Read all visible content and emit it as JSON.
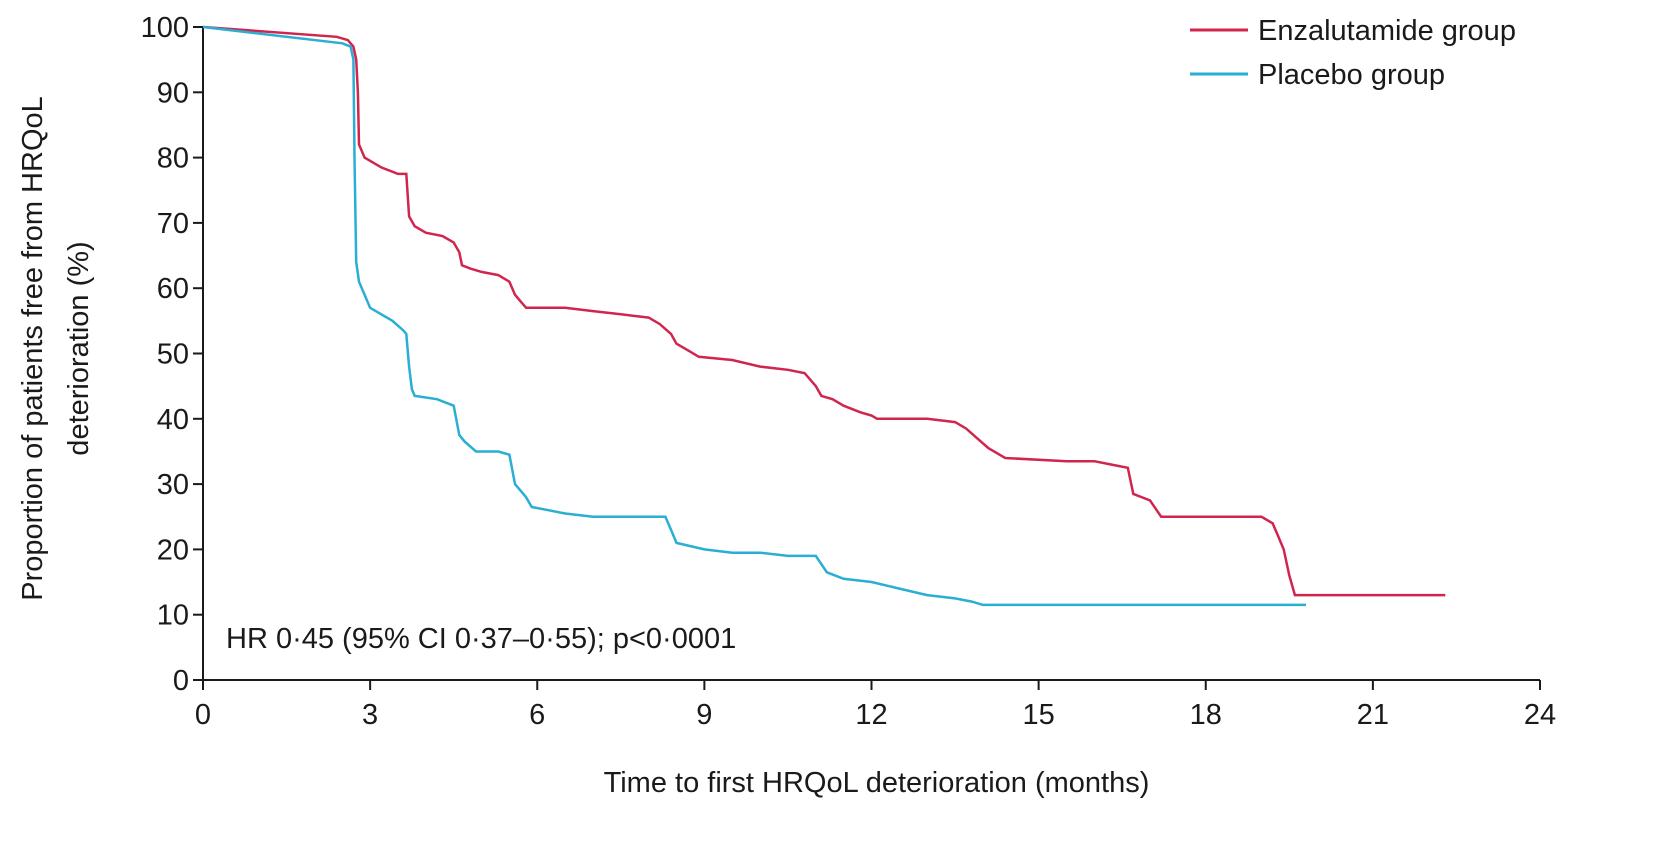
{
  "chart_data": {
    "type": "line",
    "title": "",
    "xlabel": "Time to first HRQoL deterioration (months)",
    "ylabel_line1": "Proportion of patients free from HRQoL",
    "ylabel_line2": "deterioration (%)",
    "xlim": [
      0,
      24
    ],
    "ylim": [
      0,
      100
    ],
    "xticks": [
      0,
      3,
      6,
      9,
      12,
      15,
      18,
      21,
      24
    ],
    "yticks": [
      0,
      10,
      20,
      30,
      40,
      50,
      60,
      70,
      80,
      90,
      100
    ],
    "xtick_labels": [
      "0",
      "3",
      "6",
      "9",
      "12",
      "15",
      "18",
      "21",
      "24"
    ],
    "ytick_labels": [
      "0",
      "10",
      "20",
      "30",
      "40",
      "50",
      "60",
      "70",
      "80",
      "90",
      "100"
    ],
    "grid": false,
    "legend_position": "top-right",
    "annotation": "HR 0·45 (95% CI 0·37–0·55); p<0·0001",
    "series": [
      {
        "name": "Enzalutamide group",
        "color": "#d0264e",
        "points": [
          [
            0,
            100
          ],
          [
            2.4,
            98.5
          ],
          [
            2.6,
            98
          ],
          [
            2.7,
            97
          ],
          [
            2.75,
            95
          ],
          [
            2.78,
            90
          ],
          [
            2.8,
            82
          ],
          [
            2.9,
            80
          ],
          [
            3.2,
            78.5
          ],
          [
            3.5,
            77.5
          ],
          [
            3.65,
            77.5
          ],
          [
            3.7,
            71
          ],
          [
            3.8,
            69.5
          ],
          [
            4.0,
            68.5
          ],
          [
            4.3,
            68
          ],
          [
            4.5,
            67
          ],
          [
            4.6,
            65.5
          ],
          [
            4.65,
            63.5
          ],
          [
            4.8,
            63
          ],
          [
            5.0,
            62.5
          ],
          [
            5.3,
            62
          ],
          [
            5.5,
            61
          ],
          [
            5.6,
            59
          ],
          [
            5.7,
            58
          ],
          [
            5.8,
            57
          ],
          [
            6.0,
            57
          ],
          [
            6.5,
            57
          ],
          [
            7.0,
            56.5
          ],
          [
            7.5,
            56
          ],
          [
            8.0,
            55.5
          ],
          [
            8.2,
            54.5
          ],
          [
            8.4,
            53
          ],
          [
            8.5,
            51.5
          ],
          [
            8.7,
            50.5
          ],
          [
            8.9,
            49.5
          ],
          [
            9.5,
            49
          ],
          [
            10.0,
            48
          ],
          [
            10.5,
            47.5
          ],
          [
            10.8,
            47
          ],
          [
            10.9,
            46
          ],
          [
            11.0,
            45
          ],
          [
            11.1,
            43.5
          ],
          [
            11.3,
            43
          ],
          [
            11.5,
            42
          ],
          [
            11.8,
            41
          ],
          [
            12.0,
            40.5
          ],
          [
            12.1,
            40
          ],
          [
            13.0,
            40
          ],
          [
            13.5,
            39.5
          ],
          [
            13.7,
            38.5
          ],
          [
            13.9,
            37
          ],
          [
            14.1,
            35.5
          ],
          [
            14.3,
            34.5
          ],
          [
            14.4,
            34
          ],
          [
            15.5,
            33.5
          ],
          [
            16.0,
            33.5
          ],
          [
            16.3,
            33
          ],
          [
            16.6,
            32.5
          ],
          [
            16.7,
            28.5
          ],
          [
            17.0,
            27.5
          ],
          [
            17.2,
            25
          ],
          [
            17.5,
            25
          ],
          [
            18.5,
            25
          ],
          [
            19.0,
            25
          ],
          [
            19.2,
            24
          ],
          [
            19.3,
            22
          ],
          [
            19.4,
            20
          ],
          [
            19.5,
            16
          ],
          [
            19.6,
            13
          ],
          [
            22.3,
            13
          ]
        ]
      },
      {
        "name": "Placebo group",
        "color": "#2aaed3",
        "points": [
          [
            0,
            100
          ],
          [
            2.5,
            97.5
          ],
          [
            2.65,
            97
          ],
          [
            2.7,
            95
          ],
          [
            2.72,
            80
          ],
          [
            2.75,
            64
          ],
          [
            2.8,
            61
          ],
          [
            2.9,
            59
          ],
          [
            3.0,
            57
          ],
          [
            3.2,
            56
          ],
          [
            3.4,
            55
          ],
          [
            3.6,
            53.5
          ],
          [
            3.65,
            53
          ],
          [
            3.7,
            48
          ],
          [
            3.75,
            44.5
          ],
          [
            3.8,
            43.5
          ],
          [
            4.2,
            43
          ],
          [
            4.5,
            42
          ],
          [
            4.6,
            37.5
          ],
          [
            4.7,
            36.5
          ],
          [
            4.9,
            35
          ],
          [
            5.3,
            35
          ],
          [
            5.5,
            34.5
          ],
          [
            5.6,
            30
          ],
          [
            5.8,
            28
          ],
          [
            5.9,
            26.5
          ],
          [
            6.2,
            26
          ],
          [
            6.5,
            25.5
          ],
          [
            7.0,
            25
          ],
          [
            8.0,
            25
          ],
          [
            8.3,
            25
          ],
          [
            8.4,
            23
          ],
          [
            8.5,
            21
          ],
          [
            9.0,
            20
          ],
          [
            9.5,
            19.5
          ],
          [
            10.0,
            19.5
          ],
          [
            10.5,
            19
          ],
          [
            11.0,
            19
          ],
          [
            11.2,
            16.5
          ],
          [
            11.5,
            15.5
          ],
          [
            12.0,
            15
          ],
          [
            12.5,
            14
          ],
          [
            13.0,
            13
          ],
          [
            13.5,
            12.5
          ],
          [
            13.8,
            12
          ],
          [
            14.0,
            11.5
          ],
          [
            19.8,
            11.5
          ]
        ]
      }
    ]
  }
}
